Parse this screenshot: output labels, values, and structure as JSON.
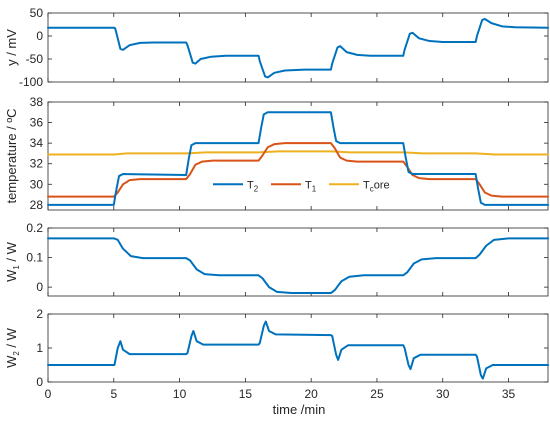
{
  "chart_data": {
    "type": "line",
    "x_label": "time /min",
    "xlim": [
      0,
      38
    ],
    "x_ticks": [
      0,
      5,
      10,
      15,
      20,
      25,
      30,
      35
    ],
    "colors": {
      "blue": "#0072BD",
      "orange": "#D95319",
      "yellow": "#EDB120"
    },
    "subplots": [
      {
        "id": "y",
        "ylabel": "y / mV",
        "ylim": [
          -100,
          50
        ],
        "yticks": [
          -100,
          -50,
          0,
          50
        ],
        "series": [
          {
            "color": "blue",
            "points": [
              [
                0,
                18
              ],
              [
                5.0,
                18
              ],
              [
                5.1,
                17
              ],
              [
                5.3,
                -5
              ],
              [
                5.5,
                -28
              ],
              [
                5.7,
                -30
              ],
              [
                6.2,
                -20
              ],
              [
                7,
                -15
              ],
              [
                8,
                -14
              ],
              [
                10.5,
                -14
              ],
              [
                10.6,
                -20
              ],
              [
                11.0,
                -58
              ],
              [
                11.2,
                -60
              ],
              [
                11.6,
                -50
              ],
              [
                12.4,
                -45
              ],
              [
                13.5,
                -43
              ],
              [
                16.0,
                -43
              ],
              [
                16.1,
                -55
              ],
              [
                16.5,
                -88
              ],
              [
                16.7,
                -90
              ],
              [
                17.2,
                -80
              ],
              [
                18.0,
                -75
              ],
              [
                19.5,
                -73
              ],
              [
                21.5,
                -73
              ],
              [
                21.6,
                -60
              ],
              [
                22.0,
                -25
              ],
              [
                22.2,
                -22
              ],
              [
                22.7,
                -35
              ],
              [
                23.5,
                -41
              ],
              [
                24.5,
                -43
              ],
              [
                27.0,
                -43
              ],
              [
                27.1,
                -30
              ],
              [
                27.5,
                5
              ],
              [
                27.7,
                7
              ],
              [
                28.2,
                -5
              ],
              [
                29.0,
                -11
              ],
              [
                30.0,
                -13
              ],
              [
                32.5,
                -13
              ],
              [
                32.6,
                0
              ],
              [
                33.0,
                35
              ],
              [
                33.2,
                37
              ],
              [
                33.7,
                28
              ],
              [
                34.5,
                21
              ],
              [
                35.5,
                19
              ],
              [
                38,
                18
              ]
            ]
          }
        ]
      },
      {
        "id": "temperature",
        "ylabel": "temperature / ºC",
        "ylim": [
          27.5,
          38
        ],
        "yticks": [
          28,
          30,
          32,
          34,
          36,
          38
        ],
        "legend": {
          "position": "center",
          "entries": [
            {
              "main": "T",
              "sub": "2",
              "rest": "",
              "color": "blue"
            },
            {
              "main": "T",
              "sub": "1",
              "rest": "",
              "color": "orange"
            },
            {
              "main": "T",
              "sub": "c",
              "rest": "ore",
              "color": "yellow"
            }
          ]
        },
        "series": [
          {
            "color": "yellow",
            "points": [
              [
                0,
                32.9
              ],
              [
                5.0,
                32.9
              ],
              [
                6.0,
                33.0
              ],
              [
                10.5,
                33.0
              ],
              [
                12.0,
                33.1
              ],
              [
                16,
                33.1
              ],
              [
                17.5,
                33.2
              ],
              [
                21.5,
                33.2
              ],
              [
                23.0,
                33.1
              ],
              [
                27.0,
                33.1
              ],
              [
                28.5,
                33.0
              ],
              [
                32.5,
                33.0
              ],
              [
                34.0,
                32.9
              ],
              [
                38,
                32.9
              ]
            ]
          },
          {
            "color": "orange",
            "points": [
              [
                0,
                28.8
              ],
              [
                5.0,
                28.8
              ],
              [
                5.3,
                29.2
              ],
              [
                5.7,
                30.0
              ],
              [
                6.2,
                30.4
              ],
              [
                7.0,
                30.5
              ],
              [
                10.5,
                30.5
              ],
              [
                10.8,
                31.0
              ],
              [
                11.2,
                31.9
              ],
              [
                11.7,
                32.2
              ],
              [
                12.5,
                32.3
              ],
              [
                16.0,
                32.3
              ],
              [
                16.3,
                32.8
              ],
              [
                16.7,
                33.6
              ],
              [
                17.2,
                33.9
              ],
              [
                18.0,
                34.0
              ],
              [
                21.5,
                34.0
              ],
              [
                21.8,
                33.5
              ],
              [
                22.2,
                32.6
              ],
              [
                22.7,
                32.3
              ],
              [
                23.5,
                32.2
              ],
              [
                27.0,
                32.2
              ],
              [
                27.3,
                31.7
              ],
              [
                27.7,
                30.9
              ],
              [
                28.2,
                30.6
              ],
              [
                29.0,
                30.5
              ],
              [
                32.5,
                30.5
              ],
              [
                32.8,
                30.0
              ],
              [
                33.2,
                29.2
              ],
              [
                33.7,
                28.9
              ],
              [
                34.5,
                28.8
              ],
              [
                38,
                28.8
              ]
            ]
          },
          {
            "color": "blue",
            "points": [
              [
                0,
                28.0
              ],
              [
                5.0,
                28.0
              ],
              [
                5.2,
                29.5
              ],
              [
                5.4,
                30.8
              ],
              [
                5.7,
                31.0
              ],
              [
                10.5,
                30.9
              ],
              [
                10.7,
                32.5
              ],
              [
                10.9,
                33.8
              ],
              [
                11.2,
                34.0
              ],
              [
                16.0,
                34.0
              ],
              [
                16.2,
                35.5
              ],
              [
                16.4,
                36.8
              ],
              [
                16.7,
                37.0
              ],
              [
                21.5,
                37.0
              ],
              [
                21.7,
                35.5
              ],
              [
                21.9,
                34.2
              ],
              [
                22.2,
                34.0
              ],
              [
                27.0,
                34.0
              ],
              [
                27.2,
                32.5
              ],
              [
                27.4,
                31.2
              ],
              [
                27.7,
                31.0
              ],
              [
                32.5,
                31.0
              ],
              [
                32.7,
                29.5
              ],
              [
                32.9,
                28.2
              ],
              [
                33.2,
                28.0
              ],
              [
                38,
                28.0
              ]
            ]
          }
        ]
      },
      {
        "id": "W1",
        "ylabel_main": "W",
        "ylabel_sub": "1",
        "ylabel_rest": " / W",
        "ylim": [
          -0.03,
          0.2
        ],
        "yticks": [
          0,
          0.1,
          0.2
        ],
        "series": [
          {
            "color": "blue",
            "points": [
              [
                0,
                0.165
              ],
              [
                5.0,
                0.165
              ],
              [
                5.3,
                0.16
              ],
              [
                5.7,
                0.13
              ],
              [
                6.3,
                0.105
              ],
              [
                7.2,
                0.098
              ],
              [
                10.5,
                0.098
              ],
              [
                10.8,
                0.09
              ],
              [
                11.3,
                0.06
              ],
              [
                11.9,
                0.044
              ],
              [
                13.0,
                0.04
              ],
              [
                16.0,
                0.04
              ],
              [
                16.3,
                0.03
              ],
              [
                16.8,
                0.0
              ],
              [
                17.4,
                -0.016
              ],
              [
                18.5,
                -0.02
              ],
              [
                21.5,
                -0.02
              ],
              [
                21.8,
                -0.01
              ],
              [
                22.3,
                0.02
              ],
              [
                22.9,
                0.035
              ],
              [
                24.0,
                0.04
              ],
              [
                27.0,
                0.04
              ],
              [
                27.3,
                0.05
              ],
              [
                27.8,
                0.08
              ],
              [
                28.4,
                0.094
              ],
              [
                29.5,
                0.098
              ],
              [
                32.5,
                0.098
              ],
              [
                32.8,
                0.11
              ],
              [
                33.3,
                0.14
              ],
              [
                33.9,
                0.16
              ],
              [
                35.0,
                0.165
              ],
              [
                38,
                0.165
              ]
            ]
          }
        ]
      },
      {
        "id": "W2",
        "ylabel_main": "W",
        "ylabel_sub": "2",
        "ylabel_rest": " / W",
        "ylim": [
          0,
          2
        ],
        "yticks": [
          0,
          1,
          2
        ],
        "series": [
          {
            "color": "blue",
            "points": [
              [
                0,
                0.5
              ],
              [
                5.0,
                0.5
              ],
              [
                5.05,
                0.5
              ],
              [
                5.3,
                1.0
              ],
              [
                5.5,
                1.2
              ],
              [
                5.7,
                0.95
              ],
              [
                6.2,
                0.82
              ],
              [
                10.5,
                0.82
              ],
              [
                10.6,
                0.85
              ],
              [
                10.9,
                1.35
              ],
              [
                11.05,
                1.5
              ],
              [
                11.3,
                1.2
              ],
              [
                11.8,
                1.1
              ],
              [
                16.0,
                1.1
              ],
              [
                16.1,
                1.15
              ],
              [
                16.4,
                1.65
              ],
              [
                16.55,
                1.78
              ],
              [
                16.8,
                1.5
              ],
              [
                17.3,
                1.4
              ],
              [
                21.5,
                1.38
              ],
              [
                21.6,
                1.35
              ],
              [
                21.9,
                0.8
              ],
              [
                22.05,
                0.65
              ],
              [
                22.3,
                0.95
              ],
              [
                22.8,
                1.08
              ],
              [
                27.0,
                1.08
              ],
              [
                27.1,
                1.0
              ],
              [
                27.4,
                0.5
              ],
              [
                27.55,
                0.38
              ],
              [
                27.8,
                0.7
              ],
              [
                28.3,
                0.8
              ],
              [
                32.5,
                0.8
              ],
              [
                32.6,
                0.75
              ],
              [
                32.9,
                0.2
              ],
              [
                33.05,
                0.1
              ],
              [
                33.3,
                0.4
              ],
              [
                33.8,
                0.5
              ],
              [
                38,
                0.5
              ]
            ]
          }
        ]
      }
    ]
  }
}
